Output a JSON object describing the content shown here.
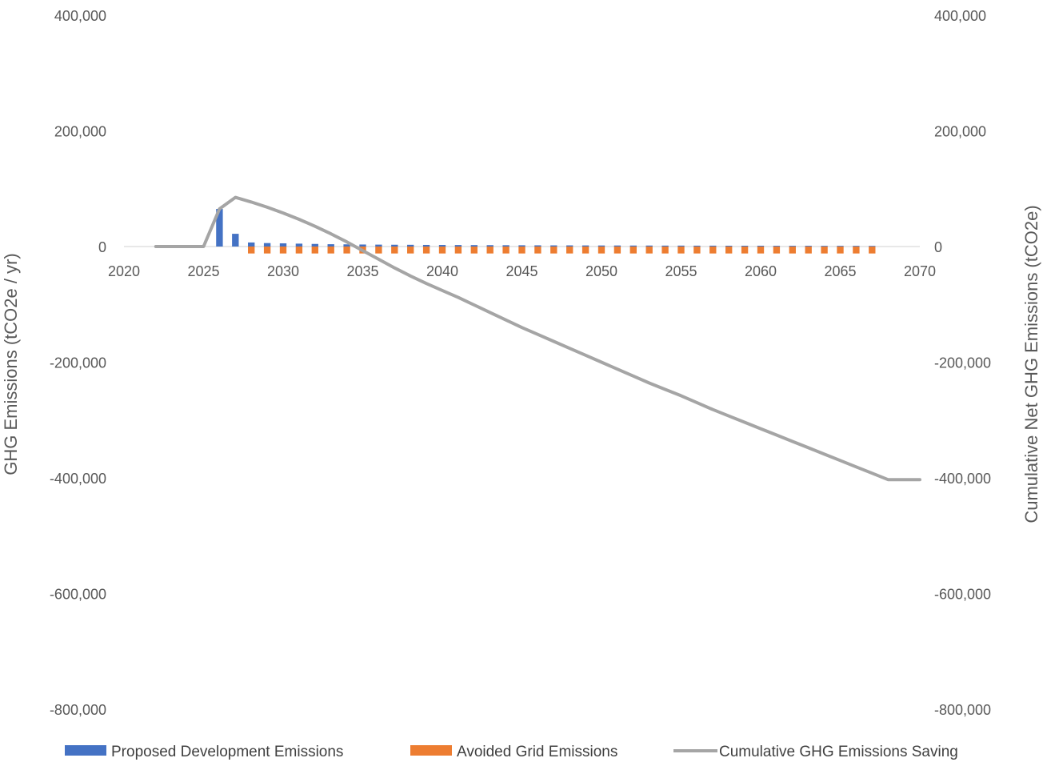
{
  "chart_data": {
    "type": "bar",
    "combo": "bar + line (secondary axis)",
    "title": "",
    "xlabel": "",
    "ylabel": "GHG Emissions (tCO2e / yr)",
    "y2label": "Cumulative Net GHG Emissions (tCO2e)",
    "ylim": [
      -800000,
      400000
    ],
    "y2lim": [
      -800000,
      400000
    ],
    "xlim": [
      2020,
      2070
    ],
    "x_ticks": [
      "2020",
      "2025",
      "2030",
      "2035",
      "2040",
      "2045",
      "2050",
      "2055",
      "2060",
      "2065",
      "2070"
    ],
    "y_ticks": [
      "400,000",
      "200,000",
      "0",
      "-200,000",
      "-400,000",
      "-600,000",
      "-800,000"
    ],
    "y2_ticks": [
      "400,000",
      "200,000",
      "0",
      "-200,000",
      "-400,000",
      "-600,000",
      "-800,000"
    ],
    "grid": false,
    "legend": "bottom",
    "colors": {
      "proposed": "#4472C4",
      "avoided": "#ED7D31",
      "cumulative": "#A5A5A5",
      "text": "#595959",
      "axis": "#D9D9D9"
    },
    "series": [
      {
        "name": "Proposed Development Emissions",
        "type": "bar",
        "x": [
          2026,
          2027,
          2028,
          2029,
          2030,
          2031,
          2032,
          2033,
          2034,
          2035,
          2036,
          2037,
          2038,
          2039,
          2040,
          2041,
          2042,
          2043,
          2044,
          2045,
          2046,
          2047,
          2048,
          2049,
          2050,
          2051,
          2052,
          2053,
          2054,
          2055,
          2056,
          2057,
          2058,
          2059,
          2060,
          2061,
          2062,
          2063,
          2064,
          2065,
          2066,
          2067
        ],
        "values": [
          65000,
          22000,
          7000,
          6000,
          5500,
          5000,
          4500,
          4000,
          3800,
          3500,
          3300,
          3100,
          3000,
          2800,
          2700,
          2600,
          2500,
          2400,
          2300,
          2200,
          2100,
          2000,
          2000,
          1900,
          1800,
          1800,
          1700,
          1700,
          1600,
          1600,
          1500,
          1500,
          1400,
          1400,
          1400,
          1300,
          1300,
          1300,
          1200,
          1200,
          1200,
          1100
        ]
      },
      {
        "name": "Avoided Grid Emissions",
        "type": "bar",
        "x": [
          2028,
          2029,
          2030,
          2031,
          2032,
          2033,
          2034,
          2035,
          2036,
          2037,
          2038,
          2039,
          2040,
          2041,
          2042,
          2043,
          2044,
          2045,
          2046,
          2047,
          2048,
          2049,
          2050,
          2051,
          2052,
          2053,
          2054,
          2055,
          2056,
          2057,
          2058,
          2059,
          2060,
          2061,
          2062,
          2063,
          2064,
          2065,
          2066,
          2067
        ],
        "values": [
          -12000,
          -12000,
          -12000,
          -12000,
          -12000,
          -12000,
          -12000,
          -12000,
          -12000,
          -12000,
          -12000,
          -12000,
          -12000,
          -12000,
          -12000,
          -12000,
          -12000,
          -12000,
          -12000,
          -12000,
          -12000,
          -12000,
          -12000,
          -12000,
          -12000,
          -12000,
          -12000,
          -12000,
          -12000,
          -12000,
          -12000,
          -12000,
          -12000,
          -12000,
          -12000,
          -12000,
          -12000,
          -12000,
          -12000,
          -12000
        ]
      },
      {
        "name": "Cumulative GHG Emissions Saving",
        "type": "line",
        "axis": "secondary",
        "x": [
          2022,
          2023,
          2024,
          2025,
          2026,
          2027,
          2028,
          2029,
          2030,
          2031,
          2032,
          2033,
          2034,
          2035,
          2036,
          2037,
          2038,
          2039,
          2040,
          2041,
          2042,
          2043,
          2044,
          2045,
          2046,
          2047,
          2048,
          2049,
          2050,
          2051,
          2052,
          2053,
          2054,
          2055,
          2056,
          2057,
          2058,
          2059,
          2060,
          2061,
          2062,
          2063,
          2064,
          2065,
          2066,
          2067,
          2068,
          2069,
          2070
        ],
        "values": [
          0,
          0,
          0,
          0,
          65000,
          85000,
          77000,
          68000,
          58000,
          47000,
          35000,
          22000,
          8000,
          -7000,
          -22000,
          -37000,
          -51000,
          -64000,
          -76000,
          -88000,
          -101000,
          -114000,
          -127000,
          -140000,
          -152000,
          -164000,
          -176000,
          -188000,
          -200000,
          -212000,
          -224000,
          -236000,
          -247000,
          -258000,
          -270000,
          -282000,
          -293000,
          -304000,
          -315000,
          -326000,
          -337000,
          -348000,
          -359000,
          -370000,
          -381000,
          -392000,
          -403000,
          -403000,
          -403000
        ]
      }
    ]
  }
}
